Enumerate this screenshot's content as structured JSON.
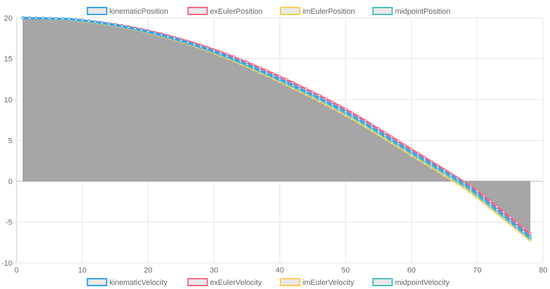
{
  "chart_data": {
    "type": "line",
    "x": {
      "min": 0,
      "max": 80,
      "ticks": [
        0,
        10,
        20,
        30,
        40,
        50,
        60,
        70,
        80
      ]
    },
    "y": {
      "min": -10,
      "max": 20,
      "ticks": [
        -10,
        -5,
        0,
        5,
        10,
        15,
        20
      ]
    },
    "grid": true,
    "legend_top": [
      {
        "name": "kinematicPosition",
        "color": "#36a2eb"
      },
      {
        "name": "exEulerPosition",
        "color": "#ff6384"
      },
      {
        "name": "imEulerPosition",
        "color": "#ffcd56"
      },
      {
        "name": "midpointPosition",
        "color": "#4bc0c0"
      }
    ],
    "legend_bottom": [
      {
        "name": "kinematicVelocity",
        "color": "#36a2eb"
      },
      {
        "name": "exEulerVelocity",
        "color": "#ff6384"
      },
      {
        "name": "imEulerVelocity",
        "color": "#ffcd56"
      },
      {
        "name": "midpointVelocity",
        "color": "#4bc0c0"
      }
    ],
    "series": [
      {
        "name": "kinematicPosition",
        "color": "#36a2eb",
        "fill": "#a6a6a6",
        "points": [
          [
            1,
            20.0
          ],
          [
            10,
            19.7
          ],
          [
            20,
            18.3
          ],
          [
            30,
            15.9
          ],
          [
            40,
            12.5
          ],
          [
            50,
            8.5
          ],
          [
            60,
            3.6
          ],
          [
            68,
            -0.3
          ],
          [
            70,
            -1.5
          ],
          [
            78,
            -6.8
          ]
        ]
      },
      {
        "name": "exEulerPosition",
        "color": "#ff6384",
        "points": [
          [
            1,
            20.0
          ],
          [
            10,
            19.7
          ],
          [
            20,
            18.4
          ],
          [
            30,
            16.1
          ],
          [
            40,
            12.8
          ],
          [
            50,
            8.8
          ],
          [
            60,
            3.9
          ],
          [
            68,
            -0.1
          ],
          [
            70,
            -1.2
          ],
          [
            78,
            -6.4
          ]
        ]
      },
      {
        "name": "imEulerPosition",
        "color": "#ffcd56",
        "points": [
          [
            1,
            20.0
          ],
          [
            10,
            19.6
          ],
          [
            20,
            18.2
          ],
          [
            30,
            15.7
          ],
          [
            40,
            12.2
          ],
          [
            50,
            8.1
          ],
          [
            60,
            3.2
          ],
          [
            68,
            -0.8
          ],
          [
            70,
            -2.0
          ],
          [
            78,
            -7.2
          ]
        ]
      },
      {
        "name": "midpointPosition",
        "color": "#4bc0c0",
        "points": [
          [
            1,
            20.0
          ],
          [
            10,
            19.65
          ],
          [
            20,
            18.25
          ],
          [
            30,
            15.8
          ],
          [
            40,
            12.35
          ],
          [
            50,
            8.3
          ],
          [
            60,
            3.4
          ],
          [
            68,
            -0.55
          ],
          [
            70,
            -1.75
          ],
          [
            78,
            -7.0
          ]
        ]
      }
    ]
  }
}
